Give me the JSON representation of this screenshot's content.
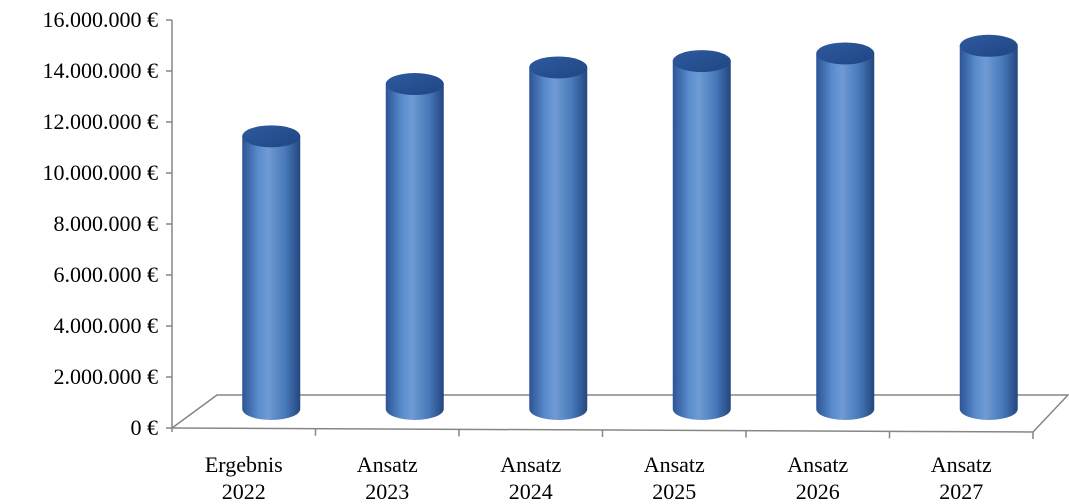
{
  "chart_data": {
    "type": "bar",
    "style": "3d-cylinder",
    "categories": [
      [
        "Ergebnis",
        "2022"
      ],
      [
        "Ansatz",
        "2023"
      ],
      [
        "Ansatz",
        "2024"
      ],
      [
        "Ansatz",
        "2025"
      ],
      [
        "Ansatz",
        "2026"
      ],
      [
        "Ansatz",
        "2027"
      ]
    ],
    "series": [
      {
        "values": [
          10850000,
          12900000,
          13550000,
          13800000,
          14100000,
          14400000
        ]
      }
    ],
    "ylim": [
      0,
      16000000
    ],
    "yticks": [
      0,
      2000000,
      4000000,
      6000000,
      8000000,
      10000000,
      12000000,
      14000000,
      16000000
    ],
    "ytick_labels": [
      "0 €",
      "2.000.000 €",
      "4.000.000 €",
      "6.000.000 €",
      "8.000.000 €",
      "10.000.000 €",
      "12.000.000 €",
      "14.000.000 €",
      "16.000.000 €"
    ],
    "grid": false,
    "legend": "none",
    "colors": {
      "bar": "#4f81bd",
      "bar_dark": "#2c5496",
      "bar_light": "#8db3e2",
      "axis": "#868686"
    }
  }
}
